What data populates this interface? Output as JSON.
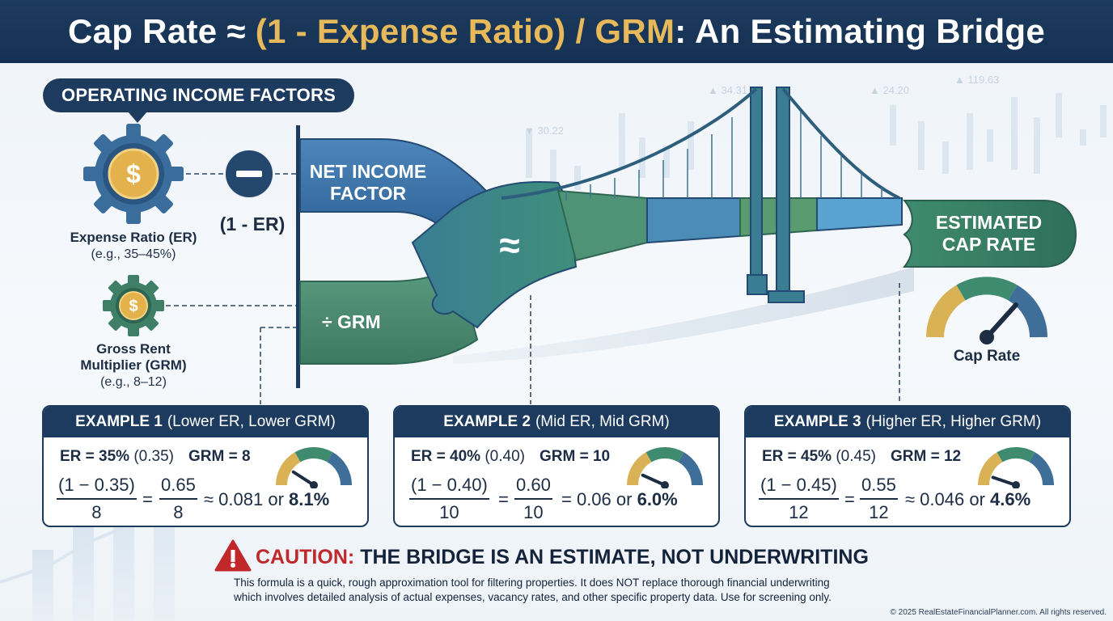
{
  "header": {
    "title_prefix": "Cap Rate ≈ ",
    "title_formula": "(1 - Expense Ratio) / GRM",
    "title_suffix": ": An Estimating Bridge"
  },
  "factors": {
    "heading": "OPERATING INCOME FACTORS",
    "expense_ratio": {
      "name": "Expense Ratio (ER)",
      "example": "(e.g., 35–45%)"
    },
    "one_minus_er": "(1 - ER)",
    "grm": {
      "name_line1": "Gross Rent",
      "name_line2": "Multiplier (GRM)",
      "example": "(e.g., 8–12)"
    }
  },
  "bridge": {
    "net_income_line1": "NET INCOME",
    "net_income_line2": "FACTOR",
    "divide_grm": "÷ GRM",
    "approx_symbol": "≈",
    "estimated_line1": "ESTIMATED",
    "estimated_line2": "CAP RATE",
    "gauge_label": "Cap Rate"
  },
  "examples": [
    {
      "title": "EXAMPLE 1",
      "subtitle": "(Lower ER, Lower GRM)",
      "er_label": "ER = 35%",
      "er_decimal": "(0.35)",
      "grm_label": "GRM = 8",
      "numerator": "(1 − 0.35)",
      "denominator": "8",
      "equals": "=",
      "simplified_numerator": "0.65",
      "simplified_denominator": "8",
      "result_prefix": "≈ 0.081 or",
      "result_percent": "8.1%",
      "gauge_level": 0.081
    },
    {
      "title": "EXAMPLE 2",
      "subtitle": "(Mid ER, Mid GRM)",
      "er_label": "ER = 40%",
      "er_decimal": "(0.40)",
      "grm_label": "GRM = 10",
      "numerator": "(1 − 0.40)",
      "denominator": "10",
      "equals": "=",
      "simplified_numerator": "0.60",
      "simplified_denominator": "10",
      "result_prefix": "= 0.06 or",
      "result_percent": "6.0%",
      "gauge_level": 0.06
    },
    {
      "title": "EXAMPLE 3",
      "subtitle": "(Higher ER, Higher GRM)",
      "er_label": "ER = 45%",
      "er_decimal": "(0.45)",
      "grm_label": "GRM = 12",
      "numerator": "(1 − 0.45)",
      "denominator": "12",
      "equals": "=",
      "simplified_numerator": "0.55",
      "simplified_denominator": "12",
      "result_prefix": "≈ 0.046 or",
      "result_percent": "4.6%",
      "gauge_level": 0.046
    }
  ],
  "caution": {
    "word": "CAUTION:",
    "headline": "THE BRIDGE IS AN ESTIMATE, NOT UNDERWRITING",
    "body_line1": "This formula is a quick, rough approximation tool for filtering properties. It does NOT replace thorough financial underwriting",
    "body_line2": "which involves detailed analysis of actual expenses, vacancy rates, and other specific property data. Use for screening only."
  },
  "background_tickers": [
    "▲ 34.31",
    "▲ 24.20",
    "▲ 119.63",
    "▼ 30.22"
  ],
  "copyright": "© 2025 RealEstateFinancialPlanner.com. All rights reserved.",
  "colors": {
    "navy": "#1d3b5e",
    "gold": "#e7b95a",
    "blue_band": "#3d74a8",
    "green_band": "#4a8a72",
    "caution_red": "#c0282a"
  },
  "icons": [
    "dollar-gear-icon",
    "minus-circle-icon",
    "dollar-small-gear-icon",
    "suspension-bridge-icon",
    "gauge-icon",
    "warning-triangle-icon"
  ]
}
